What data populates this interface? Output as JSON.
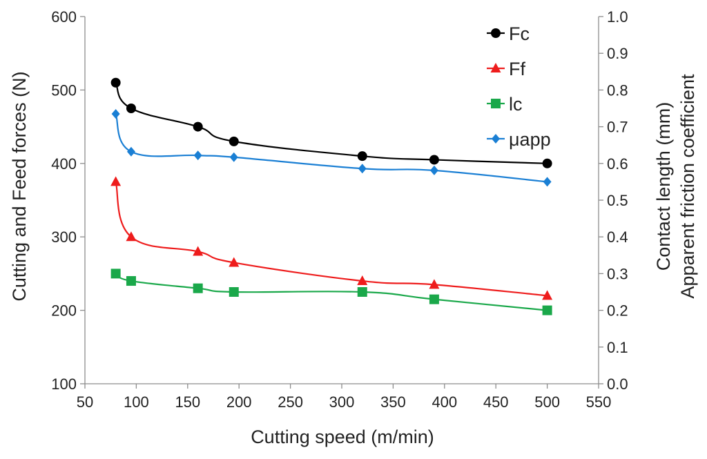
{
  "chart_data": {
    "type": "line",
    "title": "",
    "xlabel": "Cutting speed (m/min)",
    "ylabel": "Cutting and Feed forces  (N)",
    "y2label_lines": [
      "Contact length (mm)",
      "Apparent friction coefficient"
    ],
    "xlim": [
      50,
      550
    ],
    "ylim": [
      100,
      600
    ],
    "y2lim": [
      0.0,
      1.0
    ],
    "xticks": [
      50,
      100,
      150,
      200,
      250,
      300,
      350,
      400,
      450,
      500,
      550
    ],
    "yticks": [
      100,
      200,
      300,
      400,
      500,
      600
    ],
    "y2ticks": [
      "0.0",
      "0.1",
      "0.2",
      "0.3",
      "0.4",
      "0.5",
      "0.6",
      "0.7",
      "0.8",
      "0.9",
      "1.0"
    ],
    "grid": false,
    "legend_position": "top-right",
    "series": [
      {
        "name": "Fc",
        "axis": "left",
        "color": "#000000",
        "marker": "circle",
        "x": [
          80,
          95,
          160,
          195,
          320,
          390,
          500
        ],
        "y": [
          510,
          475,
          450,
          430,
          410,
          405,
          400
        ]
      },
      {
        "name": "Ff",
        "axis": "left",
        "color": "#ee1c1c",
        "marker": "triangle",
        "x": [
          80,
          95,
          160,
          195,
          320,
          390,
          500
        ],
        "y": [
          375,
          300,
          280,
          265,
          240,
          235,
          220
        ]
      },
      {
        "name": "lc",
        "axis": "right",
        "color": "#1aa84a",
        "marker": "square",
        "x": [
          80,
          95,
          160,
          195,
          320,
          390,
          500
        ],
        "y": [
          0.3,
          0.28,
          0.26,
          0.25,
          0.25,
          0.23,
          0.2
        ]
      },
      {
        "name": "μapp",
        "axis": "right",
        "color": "#1a7fd4",
        "marker": "diamond",
        "x": [
          80,
          95,
          160,
          195,
          320,
          390,
          500
        ],
        "y": [
          0.735,
          0.632,
          0.622,
          0.617,
          0.586,
          0.581,
          0.55
        ]
      }
    ]
  }
}
